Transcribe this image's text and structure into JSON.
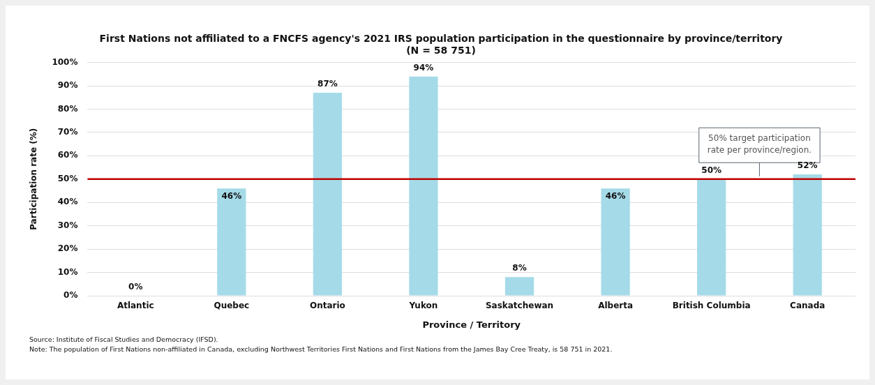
{
  "chart_data": {
    "type": "bar",
    "title": "First Nations not affiliated to a FNCFS agency's 2021 IRS population participation in the questionnaire by province/territory",
    "subtitle": "(N = 58 751)",
    "xlabel": "Province / Territory",
    "ylabel": "Participation rate (%)",
    "categories": [
      "Atlantic",
      "Quebec",
      "Ontario",
      "Yukon",
      "Saskatchewan",
      "Alberta",
      "British Columbia",
      "Canada"
    ],
    "values": [
      0,
      46,
      87,
      94,
      8,
      46,
      50,
      52
    ],
    "value_labels": [
      "0%",
      "46%",
      "87%",
      "94%",
      "8%",
      "46%",
      "50%",
      "52%"
    ],
    "color": "#a5dbe8",
    "ylim": [
      0,
      100
    ],
    "yticks": [
      {
        "value": 0,
        "label": "0%"
      },
      {
        "value": 10,
        "label": "10%"
      },
      {
        "value": 20,
        "label": "20%"
      },
      {
        "value": 30,
        "label": "30%"
      },
      {
        "value": 40,
        "label": "40%"
      },
      {
        "value": 50,
        "label": "50%"
      },
      {
        "value": 60,
        "label": "60%"
      },
      {
        "value": 70,
        "label": "70%"
      },
      {
        "value": 80,
        "label": "80%"
      },
      {
        "value": 90,
        "label": "90%"
      },
      {
        "value": 100,
        "label": "100%"
      }
    ],
    "grid": "y",
    "legend": false,
    "ref_lines": [
      {
        "axis": "y",
        "value": 50,
        "label": "50% target participation rate per province/region.",
        "color": "#c00000",
        "line_style": "solid"
      }
    ],
    "annotations": [
      "Source:  Institute of Fiscal Studies and Democracy (IFSD).",
      "Note: The population of First Nations non-affiliated in Canada, excluding Northwest Territories First Nations and First Nations from the James Bay Cree Treaty, is 58 751 in 2021."
    ]
  }
}
